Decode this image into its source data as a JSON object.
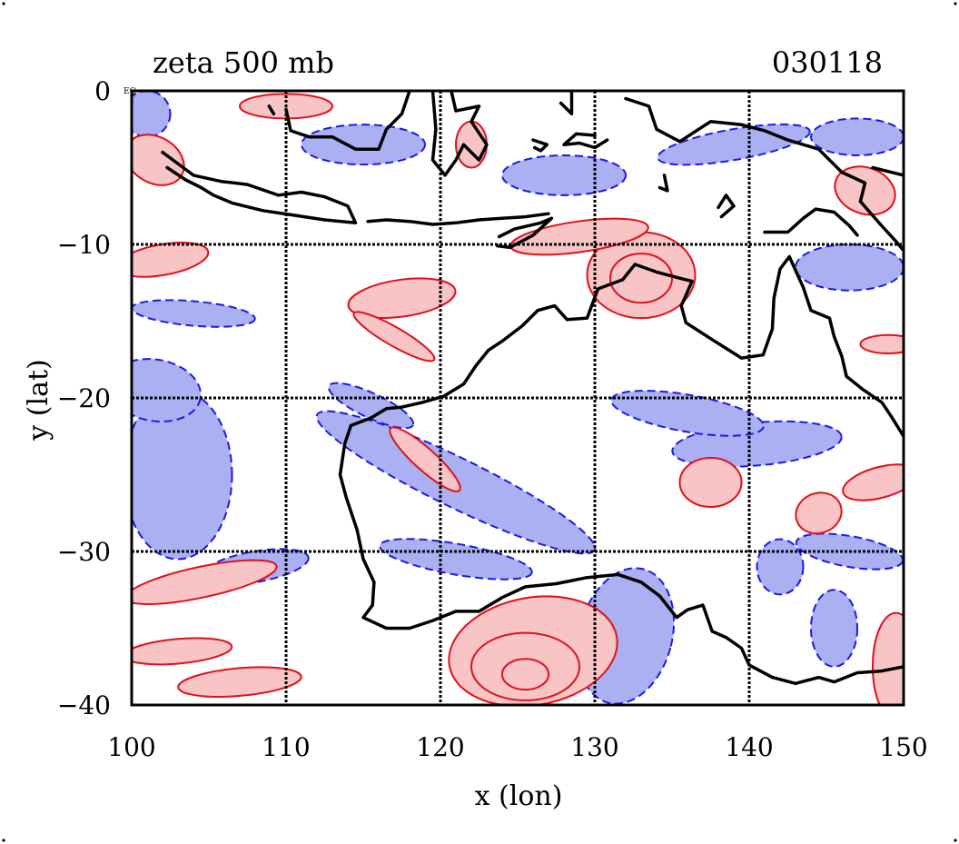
{
  "header": {
    "title": "zeta 500 mb",
    "date": "030118",
    "ylabel": "y (lat)",
    "xlabel": "x (lon)",
    "corner_label": "EQ"
  },
  "colors": {
    "positive_line": "#e0101a",
    "positive_fill": "#f8c4c6",
    "negative_line": "#1a1ae6",
    "negative_fill": "#aab0f2",
    "coast": "#000000",
    "grid": "#000000"
  },
  "chart_data": {
    "type": "contour-map",
    "title": "zeta 500 mb",
    "date": "030118",
    "xlabel": "x (lon)",
    "ylabel": "y (lat)",
    "xlim": [
      100,
      150
    ],
    "ylim": [
      -40,
      0
    ],
    "xticks": [
      100,
      110,
      120,
      130,
      140,
      150
    ],
    "yticks": [
      0,
      -10,
      -20,
      -30,
      -40
    ],
    "ytick_labels": [
      "0",
      "−10",
      "−20",
      "−30",
      "−40"
    ],
    "grid": true,
    "grid_x": [
      110,
      120,
      130,
      140
    ],
    "grid_y": [
      -10,
      -20,
      -30
    ],
    "field": "relative vorticity at 500 mb",
    "positive_style": "solid red contours with pink fill",
    "negative_style": "dashed blue contours with light blue fill",
    "coastline": [
      [
        [
          114.2,
          -21.8
        ],
        [
          113.8,
          -23.0
        ],
        [
          113.5,
          -25.0
        ],
        [
          113.9,
          -26.5
        ],
        [
          114.6,
          -28.6
        ],
        [
          115.0,
          -30.5
        ],
        [
          115.7,
          -32.0
        ],
        [
          115.6,
          -33.5
        ],
        [
          115.0,
          -34.3
        ],
        [
          116.5,
          -35.0
        ],
        [
          118.0,
          -35.0
        ],
        [
          119.5,
          -34.5
        ],
        [
          121.0,
          -33.9
        ],
        [
          122.5,
          -33.9
        ],
        [
          124.0,
          -33.0
        ],
        [
          125.5,
          -32.3
        ],
        [
          127.5,
          -32.1
        ],
        [
          129.5,
          -31.7
        ],
        [
          131.5,
          -31.5
        ],
        [
          133.0,
          -32.0
        ],
        [
          134.2,
          -32.9
        ],
        [
          135.3,
          -34.3
        ],
        [
          136.0,
          -33.8
        ],
        [
          137.0,
          -33.5
        ],
        [
          137.6,
          -35.2
        ],
        [
          138.5,
          -35.6
        ],
        [
          139.5,
          -36.3
        ],
        [
          140.0,
          -37.4
        ],
        [
          141.5,
          -38.2
        ],
        [
          143.0,
          -38.6
        ],
        [
          144.5,
          -38.2
        ],
        [
          145.5,
          -38.5
        ],
        [
          147.0,
          -37.9
        ],
        [
          148.5,
          -37.8
        ],
        [
          150.0,
          -37.5
        ]
      ],
      [
        [
          150.0,
          -22.5
        ],
        [
          149.2,
          -21.2
        ],
        [
          148.6,
          -20.3
        ],
        [
          147.3,
          -19.4
        ],
        [
          146.3,
          -18.6
        ],
        [
          146.0,
          -17.3
        ],
        [
          145.5,
          -16.0
        ],
        [
          145.2,
          -14.8
        ],
        [
          144.0,
          -14.3
        ],
        [
          143.5,
          -12.8
        ],
        [
          142.6,
          -10.8
        ],
        [
          142.0,
          -11.6
        ],
        [
          141.6,
          -13.5
        ],
        [
          141.5,
          -15.5
        ],
        [
          140.9,
          -17.2
        ],
        [
          139.5,
          -17.4
        ],
        [
          137.6,
          -16.2
        ],
        [
          135.9,
          -15.1
        ],
        [
          135.6,
          -14.0
        ],
        [
          136.3,
          -12.4
        ],
        [
          135.5,
          -12.2
        ],
        [
          134.0,
          -11.8
        ],
        [
          132.6,
          -11.3
        ],
        [
          131.8,
          -12.3
        ],
        [
          130.2,
          -12.9
        ],
        [
          129.5,
          -14.8
        ],
        [
          128.2,
          -14.9
        ],
        [
          127.4,
          -14.0
        ],
        [
          126.3,
          -14.3
        ],
        [
          125.3,
          -15.3
        ],
        [
          124.0,
          -16.3
        ],
        [
          123.1,
          -16.9
        ],
        [
          122.3,
          -17.9
        ],
        [
          121.5,
          -19.1
        ],
        [
          120.2,
          -19.9
        ],
        [
          118.8,
          -20.3
        ],
        [
          117.5,
          -20.6
        ],
        [
          116.5,
          -20.7
        ],
        [
          115.5,
          -21.3
        ],
        [
          114.2,
          -21.8
        ]
      ],
      [
        [
          102.0,
          -4.0
        ],
        [
          104.0,
          -5.5
        ],
        [
          105.8,
          -5.9
        ],
        [
          107.5,
          -6.1
        ],
        [
          109.5,
          -6.8
        ],
        [
          111.0,
          -6.6
        ],
        [
          112.5,
          -6.9
        ],
        [
          114.0,
          -7.5
        ],
        [
          114.5,
          -8.6
        ],
        [
          112.5,
          -8.4
        ],
        [
          110.5,
          -8.1
        ],
        [
          108.5,
          -7.8
        ],
        [
          106.5,
          -7.3
        ],
        [
          105.3,
          -6.8
        ],
        [
          104.5,
          -6.3
        ],
        [
          103.5,
          -5.8
        ],
        [
          102.3,
          -5.0
        ]
      ],
      [
        [
          115.3,
          -8.5
        ],
        [
          116.5,
          -8.4
        ],
        [
          118.0,
          -8.5
        ],
        [
          119.5,
          -8.7
        ],
        [
          121.0,
          -8.6
        ],
        [
          122.5,
          -8.4
        ],
        [
          124.0,
          -8.3
        ],
        [
          125.5,
          -8.2
        ],
        [
          127.0,
          -8.0
        ]
      ],
      [
        [
          123.8,
          -9.5
        ],
        [
          124.8,
          -9.0
        ],
        [
          126.5,
          -8.6
        ],
        [
          127.2,
          -8.3
        ],
        [
          126.0,
          -9.4
        ],
        [
          124.5,
          -10.2
        ],
        [
          123.7,
          -10.1
        ]
      ],
      [
        [
          113.0,
          -3.0
        ],
        [
          114.5,
          -3.8
        ],
        [
          116.0,
          -3.8
        ],
        [
          116.5,
          -2.5
        ],
        [
          117.5,
          -1.5
        ],
        [
          118.0,
          0.0
        ]
      ],
      [
        [
          110.0,
          -1.2
        ],
        [
          110.3,
          -2.6
        ],
        [
          111.5,
          -3.0
        ],
        [
          113.0,
          -3.0
        ]
      ],
      [
        [
          119.5,
          0.0
        ],
        [
          119.7,
          -2.5
        ],
        [
          119.5,
          -4.5
        ],
        [
          120.3,
          -5.5
        ],
        [
          121.0,
          -4.5
        ],
        [
          121.5,
          -3.5
        ],
        [
          122.5,
          -4.5
        ],
        [
          123.0,
          -3.5
        ],
        [
          122.0,
          -2.0
        ],
        [
          122.5,
          -1.0
        ],
        [
          121.0,
          -1.3
        ],
        [
          120.7,
          0.0
        ]
      ],
      [
        [
          128.5,
          0.0
        ],
        [
          128.5,
          -1.5
        ],
        [
          127.8,
          -0.8
        ]
      ],
      [
        [
          132.0,
          -0.5
        ],
        [
          133.5,
          -1.0
        ],
        [
          134.0,
          -2.5
        ],
        [
          135.5,
          -3.3
        ],
        [
          137.5,
          -2.0
        ],
        [
          139.5,
          -2.2
        ],
        [
          141.0,
          -2.6
        ],
        [
          142.5,
          -3.2
        ],
        [
          144.5,
          -3.8
        ],
        [
          146.0,
          -5.3
        ],
        [
          147.5,
          -6.0
        ],
        [
          147.2,
          -7.2
        ],
        [
          148.5,
          -8.7
        ],
        [
          149.5,
          -9.8
        ],
        [
          150.0,
          -10.4
        ]
      ],
      [
        [
          141.0,
          -9.2
        ],
        [
          142.5,
          -9.2
        ],
        [
          143.5,
          -8.3
        ],
        [
          144.3,
          -7.7
        ],
        [
          145.5,
          -7.9
        ],
        [
          146.5,
          -8.8
        ],
        [
          147.0,
          -9.4
        ]
      ],
      [
        [
          138.2,
          -8.2
        ],
        [
          139.0,
          -7.5
        ],
        [
          138.5,
          -6.8
        ],
        [
          138.0,
          -7.6
        ]
      ],
      [
        [
          134.5,
          -5.5
        ],
        [
          134.7,
          -6.5
        ],
        [
          134.2,
          -6.3
        ]
      ],
      [
        [
          130.8,
          -3.2
        ],
        [
          130.0,
          -3.7
        ],
        [
          129.0,
          -3.4
        ],
        [
          128.0,
          -3.5
        ],
        [
          128.8,
          -2.8
        ],
        [
          130.0,
          -2.9
        ]
      ],
      [
        [
          126.0,
          -3.2
        ],
        [
          126.9,
          -3.5
        ],
        [
          126.5,
          -3.9
        ],
        [
          126.1,
          -3.7
        ]
      ],
      [
        [
          148.0,
          -5.0
        ],
        [
          150.0,
          -5.5
        ]
      ],
      [
        [
          108.9,
          -1.0
        ],
        [
          109.2,
          -1.5
        ]
      ]
    ],
    "positive_regions": [
      {
        "center": [
          126.0,
          -36.5
        ],
        "radii": [
          5.5,
          3.5
        ],
        "rotate": -10,
        "level": 2
      },
      {
        "center": [
          125.5,
          -37.5
        ],
        "radii": [
          3.5,
          2.2
        ],
        "rotate": 0,
        "level": 3
      },
      {
        "center": [
          125.5,
          -38.0
        ],
        "radii": [
          1.5,
          1.0
        ],
        "rotate": 0,
        "level": 4
      },
      {
        "center": [
          133.0,
          -12.0
        ],
        "radii": [
          3.5,
          2.8
        ],
        "rotate": 0,
        "level": 2
      },
      {
        "center": [
          133.0,
          -12.2
        ],
        "radii": [
          2.0,
          1.6
        ],
        "rotate": 0,
        "level": 3
      },
      {
        "center": [
          129.0,
          -9.5
        ],
        "radii": [
          4.5,
          1.0
        ],
        "rotate": -8,
        "level": 1
      },
      {
        "center": [
          117.5,
          -13.5
        ],
        "radii": [
          3.5,
          1.2
        ],
        "rotate": -8,
        "level": 1
      },
      {
        "center": [
          119.0,
          -24.0
        ],
        "radii": [
          3.0,
          0.7
        ],
        "rotate": 42,
        "level": 1
      },
      {
        "center": [
          117.0,
          -16.0
        ],
        "radii": [
          3.0,
          0.6
        ],
        "rotate": 30,
        "level": 1
      },
      {
        "center": [
          104.5,
          -32.0
        ],
        "radii": [
          5.0,
          1.0
        ],
        "rotate": -12,
        "level": 1
      },
      {
        "center": [
          103.0,
          -36.5
        ],
        "radii": [
          3.5,
          0.8
        ],
        "rotate": -5,
        "level": 1
      },
      {
        "center": [
          107.0,
          -38.5
        ],
        "radii": [
          4.0,
          0.9
        ],
        "rotate": -5,
        "level": 1
      },
      {
        "center": [
          102.0,
          -11.0
        ],
        "radii": [
          3.0,
          1.0
        ],
        "rotate": -10,
        "level": 1
      },
      {
        "center": [
          101.5,
          -4.5
        ],
        "radii": [
          2.0,
          1.5
        ],
        "rotate": 30,
        "level": 1
      },
      {
        "center": [
          137.5,
          -25.5
        ],
        "radii": [
          2.0,
          1.6
        ],
        "rotate": 0,
        "level": 1
      },
      {
        "center": [
          144.5,
          -27.5
        ],
        "radii": [
          1.5,
          1.3
        ],
        "rotate": -20,
        "level": 1
      },
      {
        "center": [
          148.5,
          -25.5
        ],
        "radii": [
          2.5,
          1.0
        ],
        "rotate": -15,
        "level": 1
      },
      {
        "center": [
          149.5,
          -37.5
        ],
        "radii": [
          1.5,
          3.5
        ],
        "rotate": 0,
        "level": 1
      },
      {
        "center": [
          149.0,
          -16.5
        ],
        "radii": [
          1.8,
          0.6
        ],
        "rotate": 0,
        "level": 1
      },
      {
        "center": [
          147.5,
          -6.5
        ],
        "radii": [
          2.0,
          1.5
        ],
        "rotate": 20,
        "level": 1
      },
      {
        "center": [
          110.0,
          -1.0
        ],
        "radii": [
          3.0,
          0.8
        ],
        "rotate": 0,
        "level": 1
      },
      {
        "center": [
          122.0,
          -3.5
        ],
        "radii": [
          1.0,
          1.5
        ],
        "rotate": 0,
        "level": 1
      }
    ],
    "negative_regions": [
      {
        "center": [
          103.0,
          -25.0
        ],
        "radii": [
          3.5,
          5.5
        ],
        "rotate": 0
      },
      {
        "center": [
          101.5,
          -19.5
        ],
        "radii": [
          3.0,
          2.0
        ],
        "rotate": 10
      },
      {
        "center": [
          121.0,
          -25.5
        ],
        "radii": [
          10.0,
          1.6
        ],
        "rotate": 26
      },
      {
        "center": [
          132.0,
          -35.5
        ],
        "radii": [
          3.0,
          4.5
        ],
        "rotate": 15
      },
      {
        "center": [
          140.5,
          -23.0
        ],
        "radii": [
          5.5,
          1.4
        ],
        "rotate": -5
      },
      {
        "center": [
          136.0,
          -21.0
        ],
        "radii": [
          5.0,
          1.2
        ],
        "rotate": 10
      },
      {
        "center": [
          121.0,
          -30.5
        ],
        "radii": [
          5.0,
          1.0
        ],
        "rotate": 10
      },
      {
        "center": [
          115.0,
          -3.5
        ],
        "radii": [
          4.0,
          1.3
        ],
        "rotate": 0
      },
      {
        "center": [
          128.0,
          -5.5
        ],
        "radii": [
          4.0,
          1.3
        ],
        "rotate": 0
      },
      {
        "center": [
          139.0,
          -3.5
        ],
        "radii": [
          5.0,
          1.0
        ],
        "rotate": -10
      },
      {
        "center": [
          147.0,
          -3.0
        ],
        "radii": [
          3.0,
          1.2
        ],
        "rotate": 0
      },
      {
        "center": [
          104.0,
          -14.5
        ],
        "radii": [
          4.0,
          0.8
        ],
        "rotate": 5
      },
      {
        "center": [
          146.5,
          -11.5
        ],
        "radii": [
          3.5,
          1.5
        ],
        "rotate": 0
      },
      {
        "center": [
          115.5,
          -20.5
        ],
        "radii": [
          3.0,
          0.8
        ],
        "rotate": 25
      },
      {
        "center": [
          108.0,
          -31.0
        ],
        "radii": [
          3.5,
          1.0
        ],
        "rotate": -10
      },
      {
        "center": [
          146.5,
          -30.0
        ],
        "radii": [
          3.5,
          1.0
        ],
        "rotate": 10
      },
      {
        "center": [
          142.0,
          -31.0
        ],
        "radii": [
          1.5,
          1.8
        ],
        "rotate": 0
      },
      {
        "center": [
          145.5,
          -35.0
        ],
        "radii": [
          1.5,
          2.5
        ],
        "rotate": 0
      },
      {
        "center": [
          101.0,
          -1.5
        ],
        "radii": [
          1.5,
          1.5
        ],
        "rotate": 0
      }
    ]
  }
}
